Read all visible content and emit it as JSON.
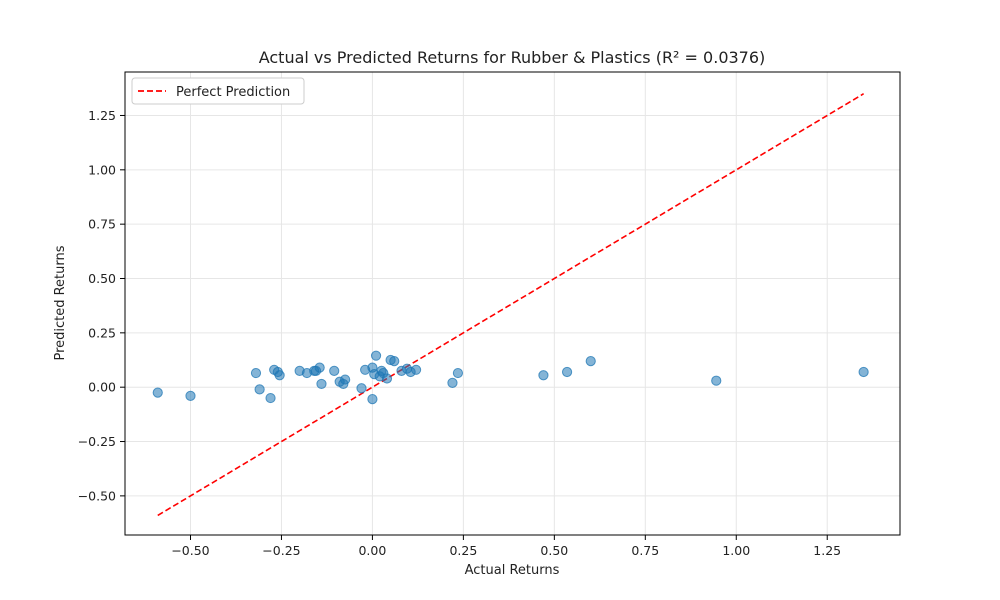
{
  "chart_data": {
    "type": "scatter",
    "title": "Actual vs Predicted Returns for Rubber & Plastics (R² = 0.0376)",
    "xlabel": "Actual Returns",
    "ylabel": "Predicted Returns",
    "xlim": [
      -0.68,
      1.45
    ],
    "ylim": [
      -0.68,
      1.45
    ],
    "xticks": [
      -0.5,
      -0.25,
      0.0,
      0.25,
      0.5,
      0.75,
      1.0,
      1.25
    ],
    "yticks": [
      -0.5,
      -0.25,
      0.0,
      0.25,
      0.5,
      0.75,
      1.0,
      1.25
    ],
    "xtick_labels": [
      "−0.50",
      "−0.25",
      "0.00",
      "0.25",
      "0.50",
      "0.75",
      "1.00",
      "1.25"
    ],
    "ytick_labels": [
      "−0.50",
      "−0.25",
      "0.00",
      "0.25",
      "0.50",
      "0.75",
      "1.00",
      "1.25"
    ],
    "grid": true,
    "legend": {
      "position": "top-left",
      "entries": [
        "Perfect Prediction"
      ]
    },
    "point_color": "#1f77b4",
    "line_color": "#ff0000",
    "reference_line": {
      "name": "Perfect Prediction",
      "x": [
        -0.59,
        1.35
      ],
      "y": [
        -0.59,
        1.35
      ],
      "style": "dashed"
    },
    "series": [
      {
        "x": [
          -0.59,
          -0.5,
          -0.32,
          -0.31,
          -0.28,
          -0.27,
          -0.26,
          -0.255,
          -0.2,
          -0.18,
          -0.16,
          -0.155,
          -0.145,
          -0.14,
          -0.105,
          -0.09,
          -0.08,
          -0.075,
          -0.03,
          -0.02,
          0.0,
          0.0,
          0.005,
          0.01,
          0.02,
          0.025,
          0.03,
          0.04,
          0.05,
          0.06,
          0.08,
          0.095,
          0.105,
          0.12,
          0.22,
          0.235,
          0.47,
          0.535,
          0.6,
          0.945,
          1.35
        ],
        "y": [
          -0.025,
          -0.04,
          0.065,
          -0.01,
          -0.05,
          0.08,
          0.07,
          0.055,
          0.075,
          0.065,
          0.075,
          0.075,
          0.09,
          0.015,
          0.075,
          0.025,
          0.015,
          0.035,
          -0.005,
          0.08,
          0.09,
          -0.055,
          0.06,
          0.145,
          0.05,
          0.075,
          0.065,
          0.04,
          0.125,
          0.12,
          0.075,
          0.085,
          0.07,
          0.08,
          0.02,
          0.065,
          0.055,
          0.07,
          0.12,
          0.03,
          0.07
        ]
      }
    ]
  }
}
